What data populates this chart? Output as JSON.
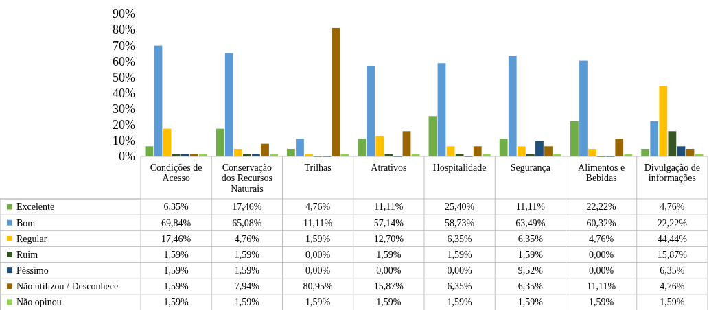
{
  "chart_data": {
    "type": "bar",
    "categories": [
      "Condições de Acesso",
      "Conservação dos Recursos Naturais",
      "Trilhas",
      "Atrativos",
      "Hospitalidade",
      "Segurança",
      "Alimentos e Bebidas",
      "Divulgação de informações"
    ],
    "series": [
      {
        "name": "Excelente",
        "color": "#70ad47",
        "values": [
          6.35,
          17.46,
          4.76,
          11.11,
          25.4,
          11.11,
          22.22,
          4.76
        ],
        "value_labels": [
          "6,35%",
          "17,46%",
          "4,76%",
          "11,11%",
          "25,40%",
          "11,11%",
          "22,22%",
          "4,76%"
        ]
      },
      {
        "name": "Bom",
        "color": "#5b9bd5",
        "values": [
          69.84,
          65.08,
          11.11,
          57.14,
          58.73,
          63.49,
          60.32,
          22.22
        ],
        "value_labels": [
          "69,84%",
          "65,08%",
          "11,11%",
          "57,14%",
          "58,73%",
          "63,49%",
          "60,32%",
          "22,22%"
        ]
      },
      {
        "name": "Regular",
        "color": "#ffc000",
        "values": [
          17.46,
          4.76,
          1.59,
          12.7,
          6.35,
          6.35,
          4.76,
          44.44
        ],
        "value_labels": [
          "17,46%",
          "4,76%",
          "1,59%",
          "12,70%",
          "6,35%",
          "6,35%",
          "4,76%",
          "44,44%"
        ]
      },
      {
        "name": "Ruim",
        "color": "#375623",
        "values": [
          1.59,
          1.59,
          0.0,
          1.59,
          1.59,
          1.59,
          0.0,
          15.87
        ],
        "value_labels": [
          "1,59%",
          "1,59%",
          "0,00%",
          "1,59%",
          "1,59%",
          "1,59%",
          "0,00%",
          "15,87%"
        ]
      },
      {
        "name": "Péssimo",
        "color": "#1f4e79",
        "values": [
          1.59,
          1.59,
          0.0,
          0.0,
          0.0,
          9.52,
          0.0,
          6.35
        ],
        "value_labels": [
          "1,59%",
          "1,59%",
          "0,00%",
          "0,00%",
          "0,00%",
          "9,52%",
          "0,00%",
          "6,35%"
        ]
      },
      {
        "name": "Não utilizou / Desconhece",
        "color": "#996600",
        "values": [
          1.59,
          7.94,
          80.95,
          15.87,
          6.35,
          6.35,
          11.11,
          4.76
        ],
        "value_labels": [
          "1,59%",
          "7,94%",
          "80,95%",
          "15,87%",
          "6,35%",
          "6,35%",
          "11,11%",
          "4,76%"
        ]
      },
      {
        "name": "Não opinou",
        "color": "#92d050",
        "values": [
          1.59,
          1.59,
          1.59,
          1.59,
          1.59,
          1.59,
          1.59,
          1.59
        ],
        "value_labels": [
          "1,59%",
          "1,59%",
          "1,59%",
          "1,59%",
          "1,59%",
          "1,59%",
          "1,59%",
          "1,59%"
        ]
      }
    ],
    "ylim": [
      0,
      90
    ],
    "yticks": [
      {
        "value": 0,
        "label": "0%"
      },
      {
        "value": 10,
        "label": "10%"
      },
      {
        "value": 20,
        "label": "20%"
      },
      {
        "value": 30,
        "label": "30%"
      },
      {
        "value": 40,
        "label": "40%"
      },
      {
        "value": 50,
        "label": "50%"
      },
      {
        "value": 60,
        "label": "60%"
      },
      {
        "value": 70,
        "label": "70%"
      },
      {
        "value": 80,
        "label": "80%"
      },
      {
        "value": 90,
        "label": "90%"
      }
    ],
    "legend": "bottom"
  }
}
